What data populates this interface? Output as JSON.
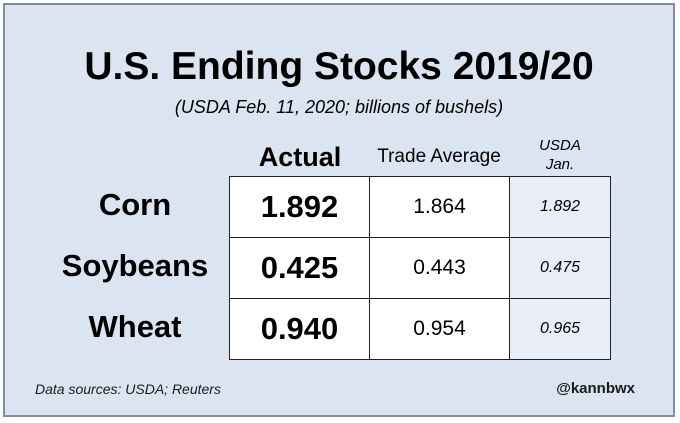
{
  "title": "U.S. Ending Stocks 2019/20",
  "subtitle": "(USDA Feb. 11, 2020; billions of bushels)",
  "columns": {
    "actual": "Actual",
    "trade": "Trade Average",
    "usda_line1": "USDA",
    "usda_line2": "Jan."
  },
  "rows": [
    {
      "label": "Corn",
      "actual": "1.892",
      "trade": "1.864",
      "usda": "1.892"
    },
    {
      "label": "Soybeans",
      "actual": "0.425",
      "trade": "0.443",
      "usda": "0.475"
    },
    {
      "label": "Wheat",
      "actual": "0.940",
      "trade": "0.954",
      "usda": "0.965"
    }
  ],
  "footer": {
    "source": "Data sources: USDA; Reuters",
    "handle": "@kannbwx"
  },
  "colors": {
    "background": "#dbe4f1",
    "border": "#7f8ea6",
    "usda_cell": "#e8edf8"
  }
}
